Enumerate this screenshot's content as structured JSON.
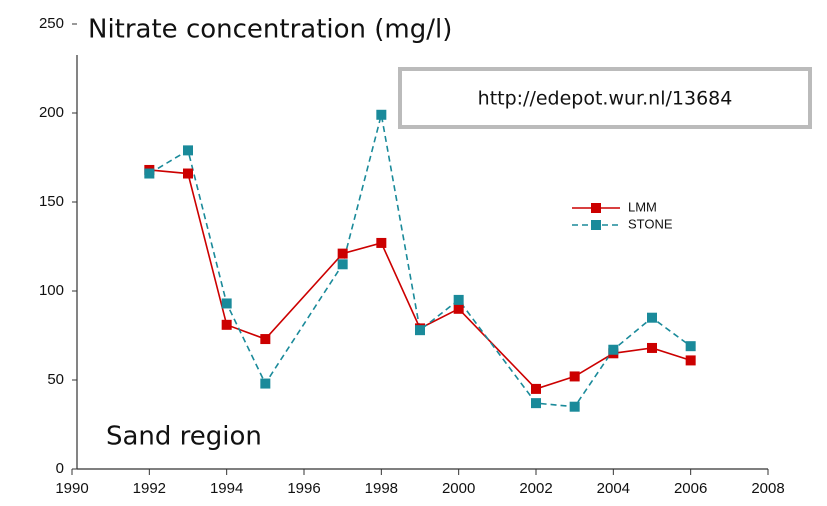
{
  "chart_data": {
    "type": "line",
    "title": "Nitrate concentration (mg/l)",
    "annotations": [
      "http://edepot.wur.nl/13684",
      "Sand region"
    ],
    "x": [
      1992,
      1993,
      1994,
      1995,
      1997,
      1998,
      1999,
      2000,
      2002,
      2003,
      2004,
      2005,
      2006
    ],
    "series": [
      {
        "name": "LMM",
        "color": "#cc0000",
        "dashed": false,
        "values": [
          168,
          166,
          81,
          73,
          121,
          127,
          79,
          90,
          45,
          52,
          65,
          68,
          61
        ]
      },
      {
        "name": "STONE",
        "color": "#1a8a9a",
        "dashed": true,
        "values": [
          166,
          179,
          93,
          48,
          115,
          199,
          78,
          95,
          37,
          35,
          67,
          85,
          69
        ]
      }
    ],
    "xlim": [
      1990,
      2008
    ],
    "xticks": [
      1990,
      1992,
      1994,
      1996,
      1998,
      2000,
      2002,
      2004,
      2006,
      2008
    ],
    "ylim": [
      0,
      250
    ],
    "yticks": [
      0,
      50,
      100,
      150,
      200,
      250
    ],
    "grid": false
  }
}
